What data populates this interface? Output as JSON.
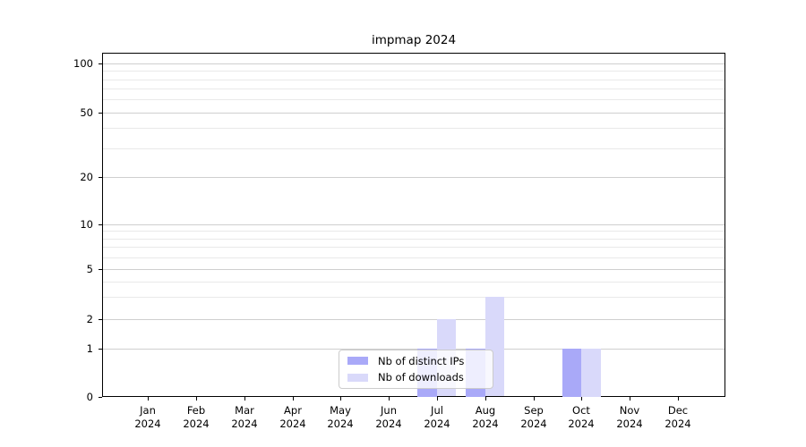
{
  "chart_data": {
    "type": "bar",
    "title": "impmap 2024",
    "categories": [
      "Jan",
      "Feb",
      "Mar",
      "Apr",
      "May",
      "Jun",
      "Jul",
      "Aug",
      "Sep",
      "Oct",
      "Nov",
      "Dec"
    ],
    "category_year": "2024",
    "series": [
      {
        "name": "Nb of distinct IPs",
        "color": "#a9a9f8",
        "values": [
          0,
          0,
          0,
          0,
          0,
          0,
          1,
          1,
          0,
          1,
          0,
          0
        ]
      },
      {
        "name": "Nb of downloads",
        "color": "#d9d9fa",
        "values": [
          0,
          0,
          0,
          0,
          0,
          0,
          2,
          3,
          0,
          1,
          0,
          0
        ]
      }
    ],
    "y_axis": {
      "scale": "log-1-2-5-with-zero",
      "ticks": [
        0,
        1,
        2,
        5,
        10,
        20,
        50,
        100
      ],
      "minor_gridlines": [
        3,
        4,
        6,
        7,
        8,
        9,
        30,
        40,
        60,
        70,
        80,
        90
      ],
      "ylim": [
        0,
        110
      ]
    },
    "x_axis": {
      "label_lines": 2
    },
    "legend": {
      "position": "lower center",
      "entries": [
        "Nb of distinct IPs",
        "Nb of downloads"
      ]
    },
    "grid": true,
    "colors": {
      "major_grid": "#cfcfcf",
      "minor_grid": "#e9e9e9",
      "axis": "#000000",
      "background": "#ffffff"
    }
  }
}
